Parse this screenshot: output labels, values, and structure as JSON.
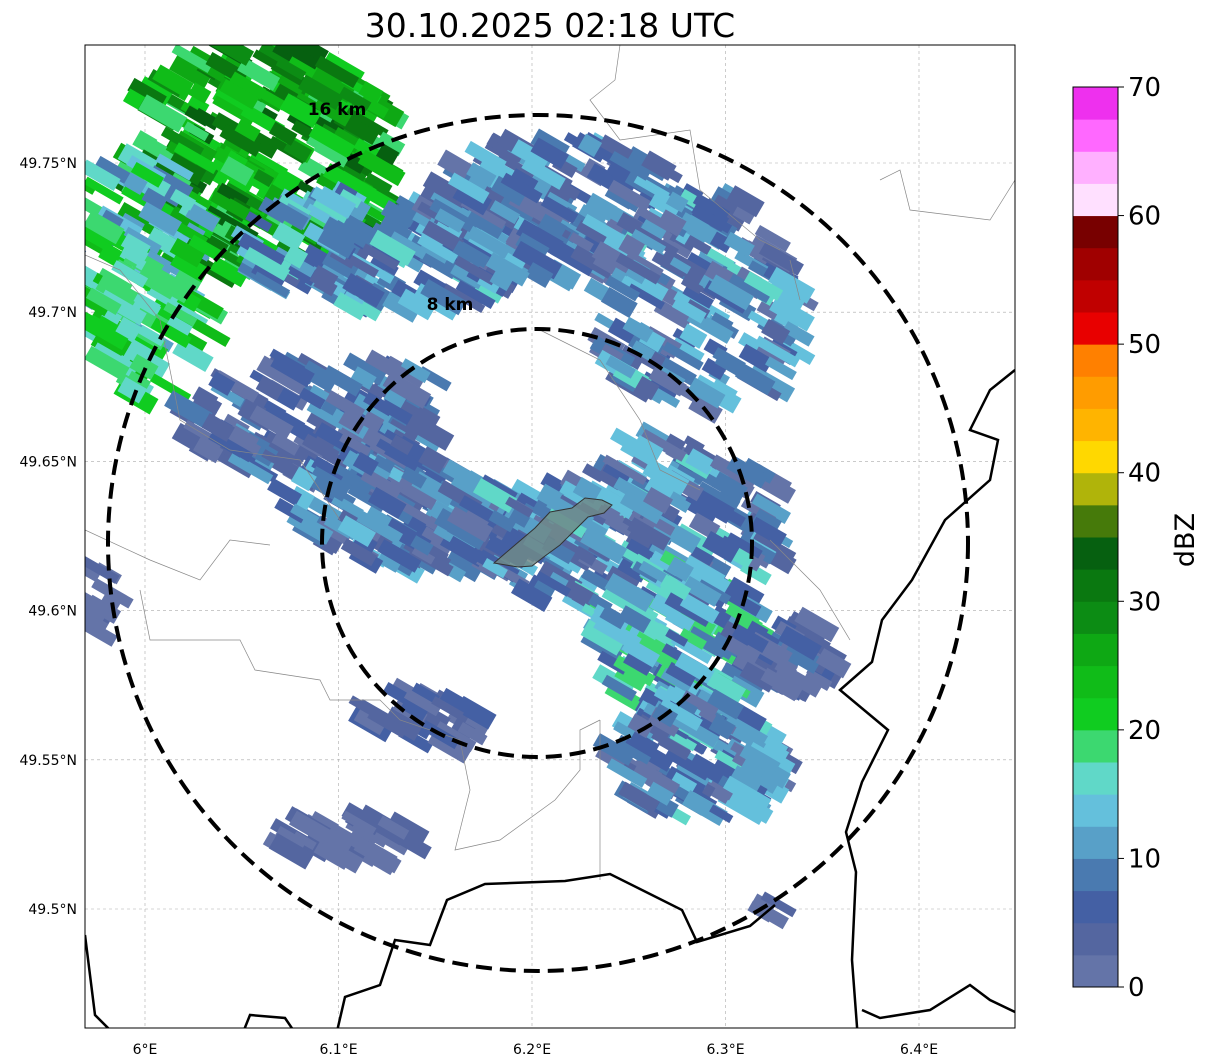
{
  "title": "30.10.2025 02:18 UTC",
  "map": {
    "lon_ticks": [
      {
        "value": 6.0,
        "label": "6°E"
      },
      {
        "value": 6.1,
        "label": "6.1°E"
      },
      {
        "value": 6.2,
        "label": "6.2°E"
      },
      {
        "value": 6.3,
        "label": "6.3°E"
      },
      {
        "value": 6.4,
        "label": "6.4°E"
      }
    ],
    "lat_ticks": [
      {
        "value": 49.75,
        "label": "49.75°N"
      },
      {
        "value": 49.7,
        "label": "49.7°N"
      },
      {
        "value": 49.65,
        "label": "49.65°N"
      },
      {
        "value": 49.6,
        "label": "49.6°N"
      },
      {
        "value": 49.55,
        "label": "49.55°N"
      },
      {
        "value": 49.5,
        "label": "49.5°N"
      }
    ],
    "range_rings": [
      {
        "label": "8 km",
        "radius_km": 8
      },
      {
        "label": "16 km",
        "radius_km": 16
      }
    ]
  },
  "colorbar": {
    "label": "dBZ",
    "ticks": [
      "0",
      "10",
      "20",
      "30",
      "40",
      "50",
      "60",
      "70"
    ],
    "min": 0,
    "max": 70,
    "step": 2.5,
    "colors": [
      "#6474a8",
      "#5466a0",
      "#4460a4",
      "#4a7ab0",
      "#58a0c8",
      "#64c0dc",
      "#60d8c8",
      "#3cd870",
      "#10cc20",
      "#10bc18",
      "#0ea814",
      "#0c8c14",
      "#0a7810",
      "#066010",
      "#467a0a",
      "#b0b40a",
      "#ffd800",
      "#ffb400",
      "#ff9c00",
      "#ff8000",
      "#e80000",
      "#c00000",
      "#a00000",
      "#780000",
      "#ffe0ff",
      "#ffb0ff",
      "#ff68ff",
      "#ee30ee"
    ]
  }
}
